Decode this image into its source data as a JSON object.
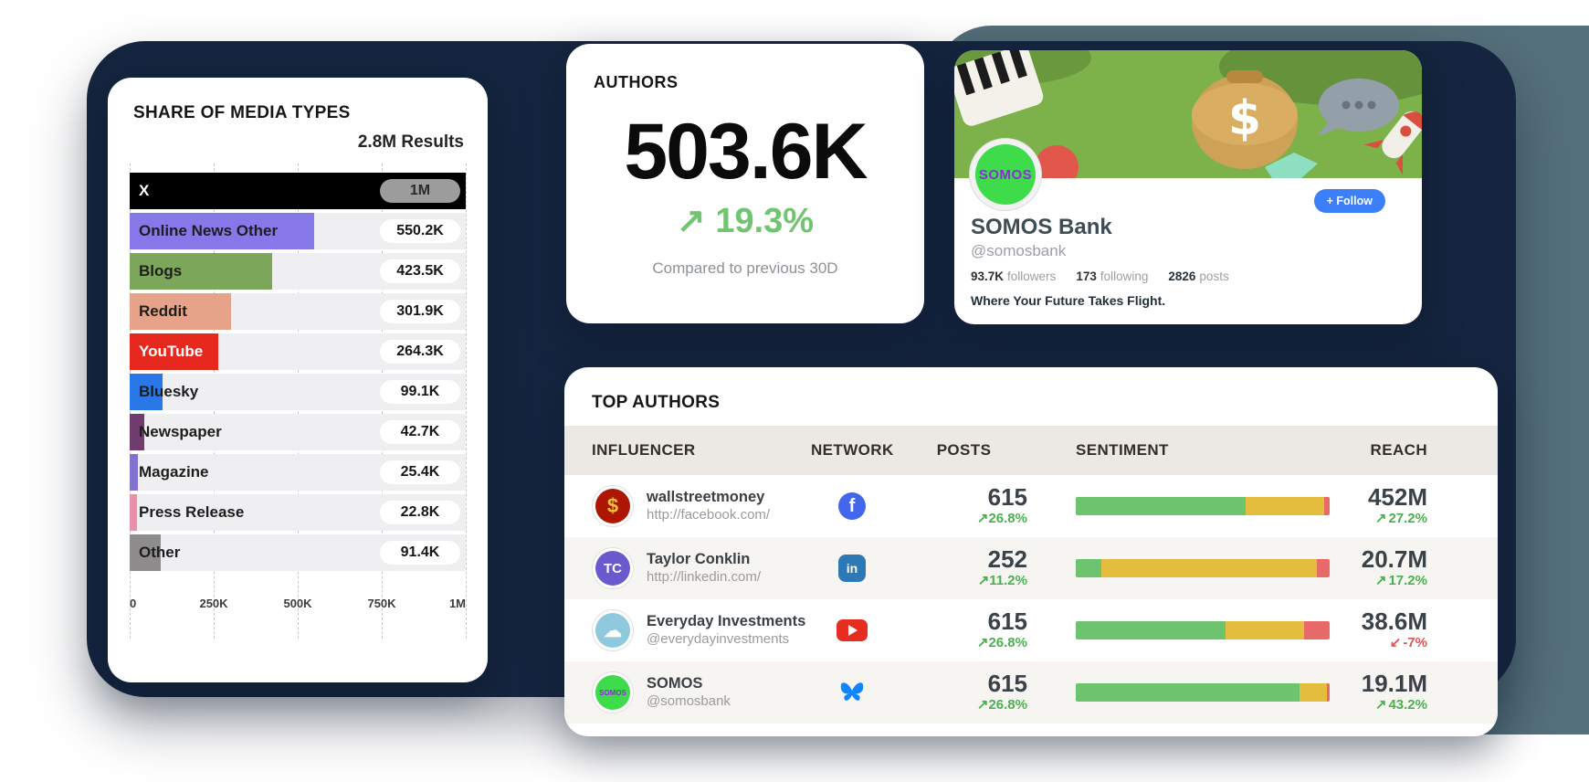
{
  "colors": {
    "bg_navy": "#15253f",
    "bg_slate": "#54707a",
    "trend_up": "#4cb050",
    "trend_down": "#e05555",
    "sentiment": {
      "positive": "#6ec46e",
      "neutral": "#e4bd3e",
      "negative": "#e76a69"
    }
  },
  "glyphs": {
    "up_arrow": "↗",
    "down_arrow": "↙",
    "plus": "+"
  },
  "media_chart": {
    "title": "SHARE OF MEDIA TYPES",
    "results_label": "2.8M Results",
    "chart_data": {
      "type": "bar",
      "orientation": "horizontal",
      "xmax": 1000,
      "xlabel_unit": "results",
      "categories": [
        "X",
        "Online News Other",
        "Blogs",
        "Reddit",
        "YouTube",
        "Bluesky",
        "Newspaper",
        "Magazine",
        "Press Release",
        "Other"
      ],
      "values_k": [
        1000,
        550.2,
        423.5,
        301.9,
        264.3,
        99.1,
        42.7,
        25.4,
        22.8,
        91.4
      ],
      "rows": [
        {
          "label": "X",
          "value_label": "1M",
          "value": 1000,
          "bar_color": "#000000",
          "label_color": "#ffffff",
          "pill_bg": "#9c9c9c",
          "pill_text": "#2b2b2b"
        },
        {
          "label": "Online News Other",
          "value_label": "550.2K",
          "value": 550.2,
          "bar_color": "#8678e8"
        },
        {
          "label": "Blogs",
          "value_label": "423.5K",
          "value": 423.5,
          "bar_color": "#7ca75a"
        },
        {
          "label": "Reddit",
          "value_label": "301.9K",
          "value": 301.9,
          "bar_color": "#e6a389"
        },
        {
          "label": "YouTube",
          "value_label": "264.3K",
          "value": 264.3,
          "bar_color": "#e7281e",
          "label_color": "#ffffff"
        },
        {
          "label": "Bluesky",
          "value_label": "99.1K",
          "value": 99.1,
          "bar_color": "#2a78e8"
        },
        {
          "label": "Newspaper",
          "value_label": "42.7K",
          "value": 42.7,
          "bar_color": "#703c6d"
        },
        {
          "label": "Magazine",
          "value_label": "25.4K",
          "value": 25.4,
          "bar_color": "#8472d0"
        },
        {
          "label": "Press Release",
          "value_label": "22.8K",
          "value": 22.8,
          "bar_color": "#e891a8"
        },
        {
          "label": "Other",
          "value_label": "91.4K",
          "value": 91.4,
          "bar_color": "#8e8c8c"
        }
      ],
      "x_ticks": [
        {
          "label": "0",
          "pos": 0
        },
        {
          "label": "250K",
          "pos": 25
        },
        {
          "label": "500K",
          "pos": 50
        },
        {
          "label": "750K",
          "pos": 75
        },
        {
          "label": "1M",
          "pos": 100
        }
      ],
      "grid": true
    }
  },
  "authors_card": {
    "title": "AUTHORS",
    "value": "503.6K",
    "change": "19.3%",
    "trend": "up",
    "subtitle": "Compared to previous 30D"
  },
  "profile_card": {
    "brand": "SOMOS",
    "name": "SOMOS Bank",
    "handle": "@somosbank",
    "followers_value": "93.7K",
    "followers_label": "followers",
    "following_value": "173",
    "following_label": "following",
    "posts_value": "2826",
    "posts_label": "posts",
    "bio": "Where Your Future Takes Flight.",
    "follow_button": "+ Follow"
  },
  "top_authors": {
    "title": "TOP AUTHORS",
    "columns": [
      "INFLUENCER",
      "NETWORK",
      "POSTS",
      "SENTIMENT",
      "REACH"
    ],
    "rows": [
      {
        "name": "wallstreetmoney",
        "handle": "http://facebook.com/",
        "avatar": {
          "type": "text",
          "text": "$",
          "bg": "#ad1603",
          "color": "#f5c33b",
          "font": "22px"
        },
        "network": {
          "type": "facebook",
          "color": "#4267ec"
        },
        "posts": "615",
        "posts_change": "26.8%",
        "posts_trend": "up",
        "sentiment": {
          "positive": 67,
          "neutral": 31,
          "negative": 2
        },
        "reach": "452M",
        "reach_change": "27.2%",
        "reach_trend": "up"
      },
      {
        "name": "Taylor Conklin",
        "handle": "http://linkedin.com/",
        "avatar": {
          "type": "text",
          "text": "TC",
          "bg": "#6a5acd",
          "color": "#ffffff",
          "font": "15px"
        },
        "network": {
          "type": "linkedin",
          "color": "#2d78b5"
        },
        "posts": "252",
        "posts_change": "11.2%",
        "posts_trend": "up",
        "sentiment": {
          "positive": 10,
          "neutral": 85,
          "negative": 5
        },
        "reach": "20.7M",
        "reach_change": "17.2%",
        "reach_trend": "up"
      },
      {
        "name": "Everyday Investments",
        "handle": "@everydayinvestments",
        "avatar": {
          "type": "text",
          "text": "☁",
          "bg": "#8ec9de",
          "color": "#ffffff",
          "font": "20px"
        },
        "network": {
          "type": "youtube",
          "color": "#e62d21"
        },
        "posts": "615",
        "posts_change": "26.8%",
        "posts_trend": "up",
        "sentiment": {
          "positive": 59,
          "neutral": 31,
          "negative": 10
        },
        "reach": "38.6M",
        "reach_change": "-7%",
        "reach_trend": "down"
      },
      {
        "name": "SOMOS",
        "handle": "@somosbank",
        "avatar": {
          "type": "text",
          "text": "SOMOS",
          "bg": "#3edb4b",
          "color": "#8b2fd6",
          "font": "8px"
        },
        "network": {
          "type": "bluesky",
          "color": "#1185fe"
        },
        "posts": "615",
        "posts_change": "26.8%",
        "posts_trend": "up",
        "sentiment": {
          "positive": 88,
          "neutral": 11,
          "negative": 1
        },
        "reach": "19.1M",
        "reach_change": "43.2%",
        "reach_trend": "up"
      }
    ]
  }
}
